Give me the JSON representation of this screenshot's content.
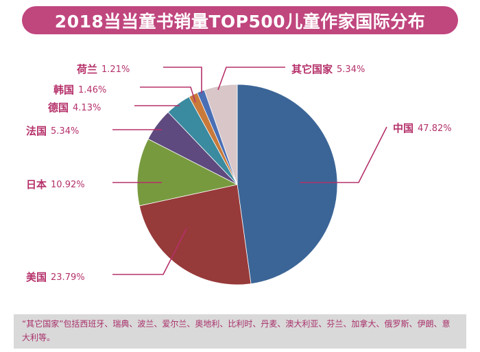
{
  "header": {
    "title": "2018当当童书销量TOP500儿童作家国际分布"
  },
  "footnote": "“其它国家”包括西班牙、瑞典、波兰、爱尔兰、奥地利、比利时、丹麦、澳大利亚、芬兰、加拿大、俄罗斯、伊朗、意大利等。",
  "chart_data": {
    "type": "pie",
    "title": "2018当当童书销量TOP500儿童作家国际分布",
    "unit": "%",
    "slices": [
      {
        "label": "中国",
        "value": 47.82,
        "display": "47.82%",
        "color": "#3b6596"
      },
      {
        "label": "美国",
        "value": 23.79,
        "display": "23.79%",
        "color": "#973a3a"
      },
      {
        "label": "日本",
        "value": 10.92,
        "display": "10.92%",
        "color": "#789a3f"
      },
      {
        "label": "法国",
        "value": 5.34,
        "display": "5.34%",
        "color": "#5e4a7e"
      },
      {
        "label": "德国",
        "value": 4.13,
        "display": "4.13%",
        "color": "#3a8aa0"
      },
      {
        "label": "韩国",
        "value": 1.46,
        "display": "1.46%",
        "color": "#c97a3a"
      },
      {
        "label": "荷兰",
        "value": 1.21,
        "display": "1.21%",
        "color": "#4a6fb5"
      },
      {
        "label": "其它国家",
        "value": 5.34,
        "display": "5.34%",
        "color": "#d8c6c8"
      }
    ],
    "leader_color": "#b5306a"
  }
}
